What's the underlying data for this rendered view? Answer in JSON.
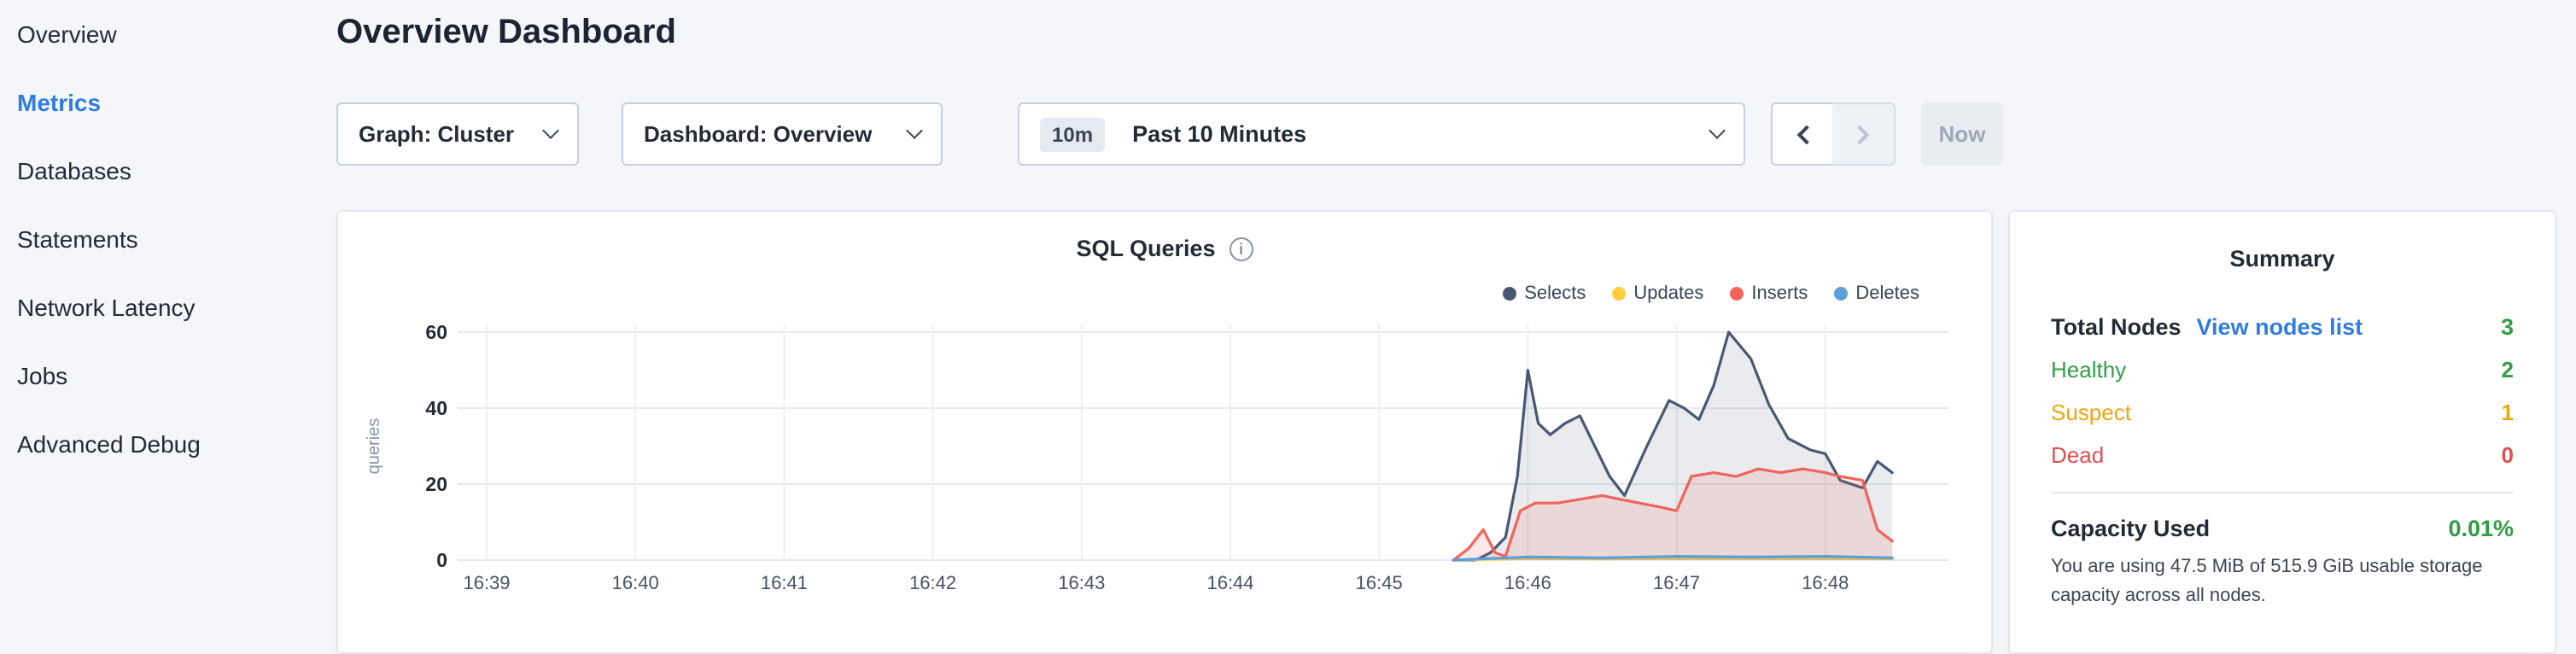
{
  "sidebar": {
    "items": [
      {
        "label": "Overview"
      },
      {
        "label": "Metrics"
      },
      {
        "label": "Databases"
      },
      {
        "label": "Statements"
      },
      {
        "label": "Network Latency"
      },
      {
        "label": "Jobs"
      },
      {
        "label": "Advanced Debug"
      }
    ]
  },
  "header": {
    "title": "Overview Dashboard"
  },
  "toolbar": {
    "graph_select": "Graph: Cluster",
    "dashboard_select": "Dashboard: Overview",
    "time_badge": "10m",
    "time_range": "Past 10 Minutes",
    "now_label": "Now"
  },
  "icons": {
    "info": "i"
  },
  "chart_panel": {
    "title": "SQL Queries"
  },
  "chart_data": {
    "type": "line",
    "title": "SQL Queries",
    "ylabel": "queries",
    "ylim": [
      0,
      60
    ],
    "yticks": [
      0,
      20,
      40,
      60
    ],
    "xticks": [
      "16:39",
      "16:40",
      "16:41",
      "16:42",
      "16:43",
      "16:44",
      "16:45",
      "16:46",
      "16:47",
      "16:48"
    ],
    "x_units": "minutes since 16:39",
    "grid": true,
    "legend_position": "top-right",
    "series": [
      {
        "name": "Selects",
        "color": "#475872",
        "fill": "rgba(71,88,114,0.12)",
        "points": [
          [
            6.5,
            0
          ],
          [
            6.65,
            0
          ],
          [
            6.75,
            2
          ],
          [
            6.85,
            6
          ],
          [
            6.93,
            22
          ],
          [
            7.0,
            50
          ],
          [
            7.07,
            36
          ],
          [
            7.15,
            33
          ],
          [
            7.25,
            36
          ],
          [
            7.35,
            38
          ],
          [
            7.45,
            30
          ],
          [
            7.55,
            22
          ],
          [
            7.65,
            17
          ],
          [
            7.8,
            30
          ],
          [
            7.95,
            42
          ],
          [
            8.05,
            40
          ],
          [
            8.15,
            37
          ],
          [
            8.25,
            46
          ],
          [
            8.35,
            60
          ],
          [
            8.5,
            53
          ],
          [
            8.62,
            41
          ],
          [
            8.75,
            32
          ],
          [
            8.9,
            29
          ],
          [
            9.0,
            28
          ],
          [
            9.1,
            21
          ],
          [
            9.25,
            19
          ],
          [
            9.35,
            26
          ],
          [
            9.45,
            23
          ]
        ]
      },
      {
        "name": "Updates",
        "color": "#ffcd3c",
        "fill": "rgba(255,205,60,0.15)",
        "points": [
          [
            6.5,
            0
          ],
          [
            7.0,
            0.4
          ],
          [
            7.5,
            0.3
          ],
          [
            8.0,
            0.5
          ],
          [
            8.5,
            0.4
          ],
          [
            9.0,
            0.5
          ],
          [
            9.45,
            0.3
          ]
        ]
      },
      {
        "name": "Inserts",
        "color": "#f2635c",
        "fill": "rgba(242,99,92,0.15)",
        "points": [
          [
            6.5,
            0
          ],
          [
            6.6,
            3
          ],
          [
            6.7,
            8
          ],
          [
            6.78,
            2
          ],
          [
            6.85,
            1
          ],
          [
            6.95,
            13
          ],
          [
            7.05,
            15
          ],
          [
            7.2,
            15
          ],
          [
            7.35,
            16
          ],
          [
            7.5,
            17
          ],
          [
            7.62,
            16
          ],
          [
            7.75,
            15
          ],
          [
            7.88,
            14
          ],
          [
            8.0,
            13
          ],
          [
            8.1,
            22
          ],
          [
            8.25,
            23
          ],
          [
            8.4,
            22
          ],
          [
            8.55,
            24
          ],
          [
            8.7,
            23
          ],
          [
            8.85,
            24
          ],
          [
            9.0,
            23
          ],
          [
            9.1,
            22
          ],
          [
            9.25,
            21
          ],
          [
            9.35,
            8
          ],
          [
            9.45,
            5
          ]
        ]
      },
      {
        "name": "Deletes",
        "color": "#5ba0d9",
        "fill": "rgba(91,160,217,0.15)",
        "points": [
          [
            6.5,
            0
          ],
          [
            7.0,
            0.8
          ],
          [
            7.5,
            0.6
          ],
          [
            8.0,
            1
          ],
          [
            8.5,
            0.8
          ],
          [
            9.0,
            1
          ],
          [
            9.45,
            0.6
          ]
        ]
      }
    ]
  },
  "summary": {
    "title": "Summary",
    "total_nodes_label": "Total Nodes",
    "view_nodes_link": "View nodes list",
    "total_nodes_value": "3",
    "rows": [
      {
        "label": "Healthy",
        "value": "2",
        "color": "#2f9e44"
      },
      {
        "label": "Suspect",
        "value": "1",
        "color": "#f2a40d"
      },
      {
        "label": "Dead",
        "value": "0",
        "color": "#e04f4f"
      }
    ],
    "capacity_label": "Capacity Used",
    "capacity_value": "0.01%",
    "capacity_note": "You are using 47.5 MiB of 515.9 GiB usable storage capacity across all nodes."
  },
  "colors": {
    "accent_blue": "#2f7de1",
    "healthy_green": "#2f9e44",
    "suspect_orange": "#f2a40d",
    "dead_red": "#e04f4f",
    "page_bg": "#f4f6fa"
  }
}
